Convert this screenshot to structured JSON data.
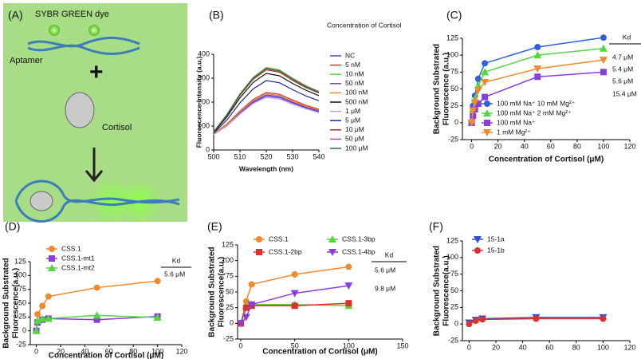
{
  "panel_a": {
    "label": "(A)",
    "dye": "SYBR GREEN dye",
    "aptamer": "Aptamer",
    "plus": "+",
    "cortisol": "Cortisol"
  },
  "chart_data": [
    {
      "type": "line",
      "panel": "(B)",
      "x_label": "Wavelength (nm)",
      "y_label": [
        "Fluorescence Intensity (a.u.)"
      ],
      "legend_title": "Concentration of Cortisol",
      "x": [
        500,
        505,
        510,
        515,
        520,
        525,
        530,
        535,
        540
      ],
      "xlim": [
        500,
        540
      ],
      "xticks": [
        500,
        510,
        520,
        530,
        540
      ],
      "ylim": [
        0,
        400
      ],
      "yticks": [
        0,
        100,
        200,
        300,
        400
      ],
      "series": [
        {
          "name": "NC",
          "color": "#3b4fc4",
          "values": [
            66,
            104,
            156,
            202,
            230,
            223,
            200,
            179,
            163
          ]
        },
        {
          "name": "5 nM",
          "color": "#e0302c",
          "values": [
            68,
            108,
            163,
            211,
            240,
            233,
            209,
            187,
            170
          ]
        },
        {
          "name": "10 nM",
          "color": "#5bd33a",
          "values": [
            76,
            148,
            235,
            304,
            345,
            335,
            300,
            269,
            245
          ]
        },
        {
          "name": "50 nM",
          "color": "#7b3fd0",
          "values": [
            65,
            102,
            153,
            198,
            225,
            218,
            196,
            176,
            160
          ]
        },
        {
          "name": "100 nM",
          "color": "#f08a2c",
          "values": [
            67,
            106,
            160,
            207,
            235,
            228,
            204,
            183,
            167
          ]
        },
        {
          "name": "500 nM",
          "color": "#111111",
          "values": [
            72,
            138,
            218,
            282,
            320,
            310,
            278,
            250,
            227
          ]
        },
        {
          "name": "1 μM",
          "color": "#c59af0",
          "values": [
            64,
            100,
            150,
            194,
            220,
            213,
            191,
            172,
            156
          ]
        },
        {
          "name": "5 μM",
          "color": "#1d2a8c",
          "values": [
            70,
            125,
            197,
            255,
            290,
            281,
            252,
            226,
            206
          ]
        },
        {
          "name": "10 μM",
          "color": "#b0302a",
          "values": [
            74,
            144,
            228,
            295,
            335,
            325,
            291,
            261,
            238
          ]
        },
        {
          "name": "50 μM",
          "color": "#d040c8",
          "values": [
            77,
            147,
            233,
            301,
            342,
            332,
            298,
            267,
            243
          ]
        },
        {
          "name": "100 μM",
          "color": "#1f7a2e",
          "values": [
            75,
            146,
            231,
            299,
            340,
            330,
            296,
            265,
            241
          ]
        }
      ]
    },
    {
      "type": "scatter",
      "panel": "(C)",
      "x_label": "Concentration of Cortisol (μM)",
      "y_label": [
        "Background Substrated",
        "Fluorescence (a.u.)"
      ],
      "x": [
        0,
        1,
        2.5,
        5,
        10,
        50,
        100
      ],
      "xlim": [
        -7,
        120
      ],
      "xticks": [
        0,
        20,
        40,
        60,
        80,
        100,
        120
      ],
      "ylim": [
        -25,
        125
      ],
      "yticks": [
        -25,
        0,
        25,
        50,
        75,
        100,
        125
      ],
      "kd": {
        "header": "Kd",
        "values": [
          "4.7 μM",
          "5.4 μM",
          "5.6 μM",
          "15.4 μM"
        ]
      },
      "series": [
        {
          "name": "100 mM Na⁺ 10 mM Mg²⁺",
          "color": "#2f62d9",
          "marker": "circle",
          "values": [
            0,
            25,
            40,
            65,
            88,
            112,
            126
          ]
        },
        {
          "name": "100 mM Na⁺ 2 mM Mg²⁺",
          "color": "#52d83a",
          "marker": "up",
          "values": [
            0,
            20,
            35,
            55,
            75,
            100,
            110
          ]
        },
        {
          "name": "100 mM Na⁺",
          "color": "#8a3ee0",
          "marker": "square",
          "values": [
            0,
            10,
            20,
            28,
            38,
            68,
            75
          ]
        },
        {
          "name": "1 mM Mg²⁺",
          "color": "#f08a2c",
          "marker": "down",
          "values": [
            0,
            18,
            30,
            48,
            60,
            80,
            93
          ]
        }
      ]
    },
    {
      "type": "scatter",
      "panel": "(D)",
      "x_label": "Concentration of Cortisol (μM)",
      "y_label": [
        "Background Substrated",
        "Fluorescence(a.u.)"
      ],
      "x": [
        0,
        1,
        5,
        10,
        50,
        100
      ],
      "xlim": [
        -5,
        120
      ],
      "xticks": [
        0,
        20,
        40,
        60,
        80,
        100,
        120
      ],
      "ylim": [
        -25,
        125
      ],
      "yticks": [
        -25,
        0,
        25,
        50,
        75,
        100,
        125
      ],
      "kd": {
        "header": "Kd",
        "values": [
          "5.6 μM"
        ]
      },
      "series": [
        {
          "name": "CSS.1",
          "color": "#f08a2c",
          "marker": "circle",
          "values": [
            0,
            30,
            45,
            62,
            78,
            90
          ]
        },
        {
          "name": "CSS.1-mt1",
          "color": "#8a3ee0",
          "marker": "square",
          "values": [
            0,
            15,
            20,
            22,
            20,
            26
          ]
        },
        {
          "name": "CSS.1-mt2",
          "color": "#52d83a",
          "marker": "up",
          "values": [
            0,
            18,
            22,
            22,
            28,
            24
          ]
        }
      ]
    },
    {
      "type": "scatter",
      "panel": "(E)",
      "x_label": "Concentration of Cortisol (μM)",
      "y_label": [
        "Background Substrated",
        "Fluorescence(a.u.)"
      ],
      "x": [
        0,
        5,
        10,
        50,
        100
      ],
      "xlim": [
        -3,
        150
      ],
      "xticks": [
        0,
        50,
        100,
        150
      ],
      "ylim": [
        -25,
        125
      ],
      "yticks": [
        -25,
        0,
        25,
        50,
        75,
        100,
        125
      ],
      "kd": {
        "header": "Kd",
        "values": [
          "5.6 μM",
          "9.8 μM"
        ]
      },
      "series": [
        {
          "name": "CSS.1",
          "color": "#f08a2c",
          "marker": "circle",
          "values": [
            0,
            35,
            62,
            78,
            90
          ]
        },
        {
          "name": "CSS.1-3bp",
          "color": "#52d83a",
          "marker": "up",
          "values": [
            0,
            28,
            30,
            30,
            28
          ]
        },
        {
          "name": "CSS.1-2bp",
          "color": "#e0302c",
          "marker": "square",
          "values": [
            0,
            25,
            28,
            28,
            32
          ]
        },
        {
          "name": "CSS.1-4bp",
          "color": "#8a3ee0",
          "marker": "down",
          "values": [
            0,
            10,
            30,
            48,
            60
          ]
        }
      ]
    },
    {
      "type": "scatter",
      "panel": "(F)",
      "y_label": [
        "Background Substrated",
        "Fluorescence(a.u.)"
      ],
      "x": [
        0,
        5,
        10,
        50,
        100
      ],
      "xlim": [
        -5,
        120
      ],
      "xticks": [
        0,
        20,
        40,
        60,
        80,
        100,
        120
      ],
      "ylim": [
        -25,
        125
      ],
      "yticks": [
        -25,
        0,
        25,
        50,
        75,
        100,
        125
      ],
      "series": [
        {
          "name": "15-1a",
          "color": "#2f4fd0",
          "marker": "down",
          "values": [
            2,
            6,
            8,
            10,
            10
          ]
        },
        {
          "name": "15-1b",
          "color": "#e0302c",
          "marker": "circle",
          "values": [
            0,
            5,
            7,
            8,
            8
          ]
        }
      ]
    }
  ]
}
